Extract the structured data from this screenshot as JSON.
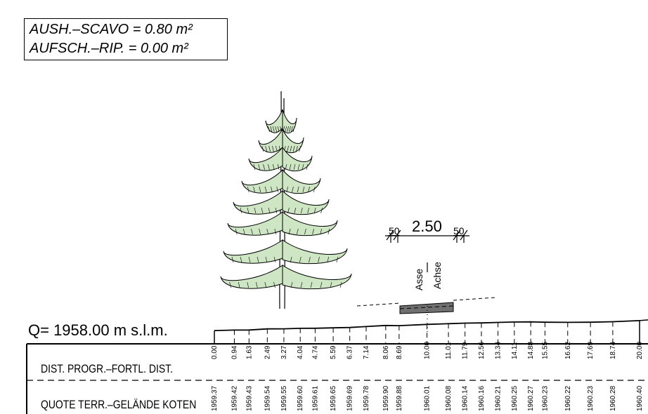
{
  "volumes": {
    "excavation": "AUSH.–SCAVO  =  0.80  m²",
    "fill": "AUFSCH.–RIP.  =  0.00  m²"
  },
  "reference_elevation": "Q=  1958.00  m  s.l.m.",
  "rows": {
    "distance_label": "DIST. PROGR.–FORTL. DIST.",
    "elevation_label": "QUOTE  TERR.–GELÄNDE KOTEN"
  },
  "road": {
    "width_label": "2.50",
    "shoulder_left": "50",
    "shoulder_right": "50",
    "axis_label_it": "Asse",
    "axis_label_de": "Achse"
  },
  "profile": {
    "reference_elevation_m": 1958.0,
    "stations": [
      {
        "dist": "0.00",
        "elev": "1959.37"
      },
      {
        "dist": "0.94",
        "elev": "1959.42"
      },
      {
        "dist": "1.63",
        "elev": "1959.43"
      },
      {
        "dist": "2.49",
        "elev": "1959.54"
      },
      {
        "dist": "3.27",
        "elev": "1959.55"
      },
      {
        "dist": "4.04",
        "elev": "1959.60"
      },
      {
        "dist": "4.74",
        "elev": "1959.61"
      },
      {
        "dist": "5.59",
        "elev": "1959.65"
      },
      {
        "dist": "6.37",
        "elev": "1959.69"
      },
      {
        "dist": "7.14",
        "elev": "1959.78"
      },
      {
        "dist": "8.06",
        "elev": "1959.90"
      },
      {
        "dist": "8.69",
        "elev": "1959.88"
      },
      {
        "dist": "10.00",
        "elev": "1960.01"
      },
      {
        "dist": "11.01",
        "elev": "1960.08"
      },
      {
        "dist": "11.79",
        "elev": "1960.14"
      },
      {
        "dist": "12.56",
        "elev": "1960.16"
      },
      {
        "dist": "13.34",
        "elev": "1960.21"
      },
      {
        "dist": "14.11",
        "elev": "1960.25"
      },
      {
        "dist": "14.88",
        "elev": "1960.27"
      },
      {
        "dist": "15.55",
        "elev": "1960.23"
      },
      {
        "dist": "16.62",
        "elev": "1960.22"
      },
      {
        "dist": "17.69",
        "elev": "1960.23"
      },
      {
        "dist": "18.74",
        "elev": "1960.28"
      },
      {
        "dist": "20.00",
        "elev": "1960.40"
      }
    ]
  },
  "colors": {
    "ink": "#000000",
    "foliage": "#cfe6c4",
    "road_fill": "#707070"
  }
}
